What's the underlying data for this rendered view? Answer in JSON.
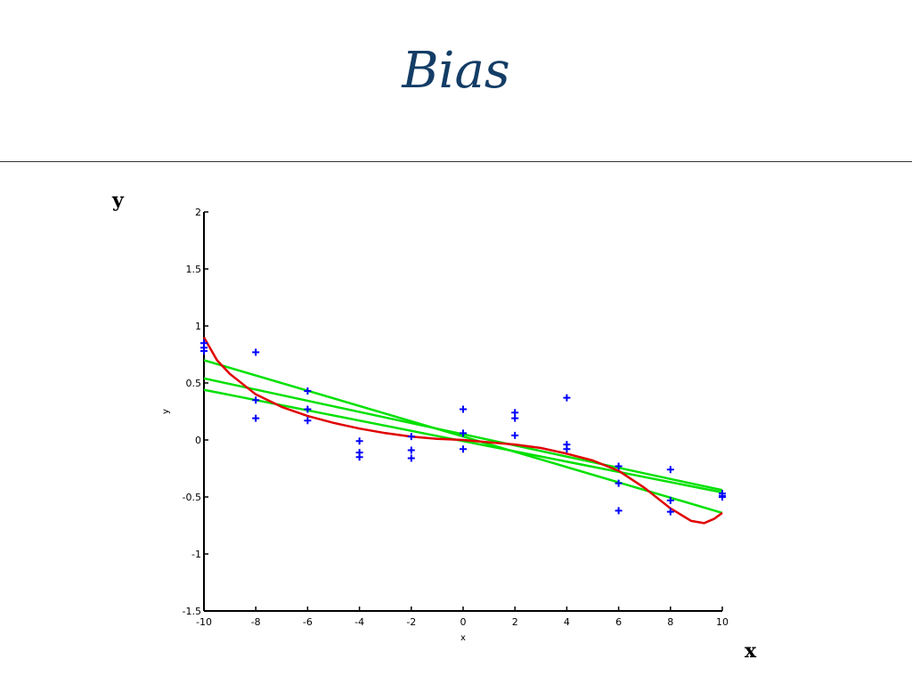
{
  "slide": {
    "title": "Bias",
    "y_label": "y",
    "x_label": "x"
  },
  "chart_data": {
    "type": "scatter",
    "xlabel": "x",
    "ylabel": "y",
    "xlim": [
      -10,
      10
    ],
    "ylim": [
      -1.5,
      2
    ],
    "x_ticks": [
      -10,
      -8,
      -6,
      -4,
      -2,
      0,
      2,
      4,
      6,
      8,
      10
    ],
    "y_ticks": [
      -1.5,
      -1,
      -0.5,
      0,
      0.5,
      1,
      1.5,
      2
    ],
    "grid": false,
    "colors": {
      "points": "#0000ff",
      "fits": "#00e000",
      "true_function": "#e00000"
    },
    "points": [
      [
        -10,
        0.85
      ],
      [
        -10,
        0.81
      ],
      [
        -10,
        0.78
      ],
      [
        -8,
        0.77
      ],
      [
        -8,
        0.35
      ],
      [
        -8,
        0.19
      ],
      [
        -6,
        0.43
      ],
      [
        -6,
        0.27
      ],
      [
        -6,
        0.17
      ],
      [
        -4,
        -0.01
      ],
      [
        -4,
        -0.11
      ],
      [
        -4,
        -0.15
      ],
      [
        -2,
        0.03
      ],
      [
        -2,
        -0.09
      ],
      [
        -2,
        -0.16
      ],
      [
        0,
        0.27
      ],
      [
        0,
        0.06
      ],
      [
        0,
        -0.08
      ],
      [
        2,
        0.24
      ],
      [
        2,
        0.19
      ],
      [
        2,
        0.04
      ],
      [
        4,
        0.37
      ],
      [
        4,
        -0.04
      ],
      [
        4,
        -0.08
      ],
      [
        6,
        -0.23
      ],
      [
        6,
        -0.38
      ],
      [
        6,
        -0.62
      ],
      [
        8,
        -0.26
      ],
      [
        8,
        -0.53
      ],
      [
        8,
        -0.63
      ],
      [
        10,
        -0.47
      ],
      [
        10,
        -0.49
      ],
      [
        10,
        -0.5
      ]
    ],
    "fit_lines": [
      {
        "slope": -0.067,
        "intercept": 0.03
      },
      {
        "slope": -0.049,
        "intercept": 0.05
      },
      {
        "slope": -0.045,
        "intercept": -0.01
      }
    ],
    "true_curve": [
      [
        -10,
        0.9
      ],
      [
        -9.5,
        0.7
      ],
      [
        -9,
        0.58
      ],
      [
        -8,
        0.4
      ],
      [
        -7,
        0.29
      ],
      [
        -6,
        0.21
      ],
      [
        -5,
        0.15
      ],
      [
        -4,
        0.1
      ],
      [
        -3,
        0.06
      ],
      [
        -2,
        0.03
      ],
      [
        -1,
        0.01
      ],
      [
        0,
        0.0
      ],
      [
        1,
        -0.02
      ],
      [
        2,
        -0.04
      ],
      [
        3,
        -0.07
      ],
      [
        4,
        -0.12
      ],
      [
        5,
        -0.18
      ],
      [
        6,
        -0.27
      ],
      [
        7,
        -0.42
      ],
      [
        8,
        -0.6
      ],
      [
        8.8,
        -0.71
      ],
      [
        9.3,
        -0.73
      ],
      [
        9.7,
        -0.69
      ],
      [
        10,
        -0.64
      ]
    ]
  }
}
